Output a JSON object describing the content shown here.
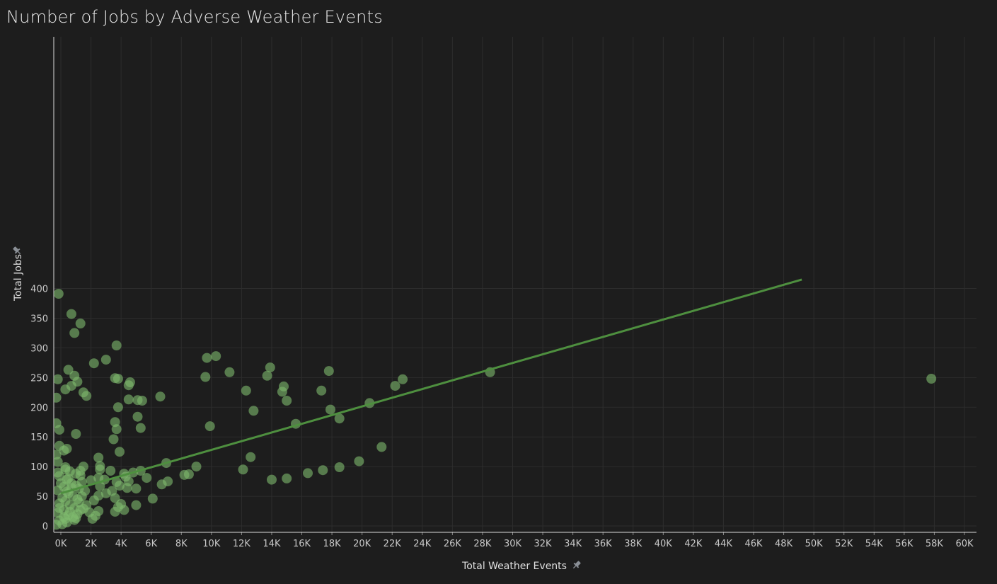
{
  "chart_data": {
    "type": "scatter",
    "title": "Number of Jobs by Adverse Weather Events",
    "xlabel": "Total Weather Events",
    "ylabel": "Total Jobs",
    "xlim": [
      -500,
      61000
    ],
    "ylim": [
      0,
      415
    ],
    "x_tick_step": 2000,
    "x_tick_max": 60000,
    "y_ticks": [
      0,
      50,
      100,
      150,
      200,
      250,
      300,
      350,
      400
    ],
    "grid": true,
    "legend": "none",
    "colors": {
      "background": "#1d1d1d",
      "point": "#7fba6e",
      "trend": "#4e8f3f",
      "grid": "#2d2d2d",
      "axis": "#dcdcdc"
    },
    "trend_line": {
      "x": [
        0,
        49200
      ],
      "y": [
        55,
        415
      ]
    },
    "points": [
      [
        -150,
        391
      ],
      [
        700,
        357
      ],
      [
        1300,
        341
      ],
      [
        900,
        325
      ],
      [
        3700,
        304
      ],
      [
        3000,
        280
      ],
      [
        2200,
        274
      ],
      [
        9700,
        283
      ],
      [
        10300,
        286
      ],
      [
        500,
        263
      ],
      [
        11200,
        259
      ],
      [
        13900,
        267
      ],
      [
        17800,
        261
      ],
      [
        28500,
        259
      ],
      [
        57800,
        248
      ],
      [
        9600,
        251
      ],
      [
        13700,
        253
      ],
      [
        22700,
        247
      ],
      [
        22200,
        236
      ],
      [
        -200,
        247
      ],
      [
        900,
        253
      ],
      [
        1100,
        243
      ],
      [
        3600,
        249
      ],
      [
        3800,
        248
      ],
      [
        4600,
        242
      ],
      [
        4500,
        237
      ],
      [
        700,
        236
      ],
      [
        14800,
        235
      ],
      [
        300,
        230
      ],
      [
        12300,
        228
      ],
      [
        14700,
        226
      ],
      [
        17300,
        228
      ],
      [
        1500,
        225
      ],
      [
        1700,
        219
      ],
      [
        -300,
        216
      ],
      [
        6600,
        218
      ],
      [
        4500,
        213
      ],
      [
        5100,
        212
      ],
      [
        5400,
        211
      ],
      [
        15000,
        211
      ],
      [
        20500,
        207
      ],
      [
        3800,
        200
      ],
      [
        12800,
        194
      ],
      [
        17900,
        196
      ],
      [
        5100,
        184
      ],
      [
        18500,
        181
      ],
      [
        3600,
        175
      ],
      [
        15600,
        172
      ],
      [
        9900,
        168
      ],
      [
        -300,
        173
      ],
      [
        5300,
        165
      ],
      [
        3700,
        163
      ],
      [
        -100,
        162
      ],
      [
        1000,
        155
      ],
      [
        3500,
        146
      ],
      [
        21300,
        133
      ],
      [
        -100,
        135
      ],
      [
        400,
        130
      ],
      [
        200,
        127
      ],
      [
        -300,
        120
      ],
      [
        3900,
        125
      ],
      [
        12600,
        116
      ],
      [
        2500,
        115
      ],
      [
        -200,
        108
      ],
      [
        7000,
        106
      ],
      [
        9000,
        100
      ],
      [
        19800,
        109
      ],
      [
        18500,
        99
      ],
      [
        1500,
        100
      ],
      [
        2600,
        101
      ],
      [
        300,
        99
      ],
      [
        12100,
        95
      ],
      [
        17400,
        94
      ],
      [
        16400,
        89
      ],
      [
        8200,
        86
      ],
      [
        8500,
        87
      ],
      [
        4800,
        90
      ],
      [
        5300,
        93
      ],
      [
        5700,
        81
      ],
      [
        15000,
        80
      ],
      [
        14000,
        78
      ],
      [
        3300,
        93
      ],
      [
        2600,
        95
      ],
      [
        4200,
        88
      ],
      [
        4300,
        83
      ],
      [
        4500,
        75
      ],
      [
        3700,
        74
      ],
      [
        2900,
        78
      ],
      [
        2000,
        77
      ],
      [
        2500,
        81
      ],
      [
        7100,
        75
      ],
      [
        6700,
        70
      ],
      [
        3900,
        68
      ],
      [
        4400,
        64
      ],
      [
        5000,
        63
      ],
      [
        2600,
        67
      ],
      [
        3400,
        59
      ],
      [
        3000,
        55
      ],
      [
        2500,
        51
      ],
      [
        3600,
        47
      ],
      [
        6100,
        46
      ],
      [
        2200,
        43
      ],
      [
        4000,
        37
      ],
      [
        3800,
        32
      ],
      [
        4200,
        27
      ],
      [
        3600,
        24
      ],
      [
        5000,
        35
      ],
      [
        2500,
        25
      ],
      [
        2300,
        17
      ],
      [
        2100,
        12
      ],
      [
        1900,
        23
      ],
      [
        1500,
        29
      ],
      [
        1700,
        35
      ],
      [
        1300,
        27
      ],
      [
        1100,
        20
      ],
      [
        1000,
        13
      ],
      [
        1400,
        50
      ],
      [
        1600,
        59
      ],
      [
        1200,
        63
      ],
      [
        1000,
        68
      ],
      [
        1400,
        74
      ],
      [
        1300,
        85
      ],
      [
        1300,
        93
      ],
      [
        1000,
        88
      ],
      [
        600,
        92
      ],
      [
        300,
        95
      ],
      [
        -100,
        84
      ],
      [
        400,
        78
      ],
      [
        700,
        72
      ],
      [
        200,
        66
      ],
      [
        -200,
        60
      ],
      [
        500,
        55
      ],
      [
        800,
        50
      ],
      [
        1100,
        45
      ],
      [
        300,
        42
      ],
      [
        -100,
        38
      ],
      [
        600,
        35
      ],
      [
        900,
        30
      ],
      [
        200,
        27
      ],
      [
        -200,
        22
      ],
      [
        500,
        18
      ],
      [
        800,
        15
      ],
      [
        300,
        12
      ],
      [
        -100,
        9
      ],
      [
        400,
        6
      ],
      [
        100,
        3
      ],
      [
        -300,
        2
      ],
      [
        600,
        24
      ],
      [
        900,
        10
      ],
      [
        1200,
        40
      ],
      [
        0,
        72
      ],
      [
        -200,
        90
      ],
      [
        100,
        48
      ],
      [
        400,
        58
      ],
      [
        700,
        64
      ],
      [
        -100,
        30
      ],
      [
        200,
        15
      ],
      [
        500,
        80
      ]
    ]
  }
}
